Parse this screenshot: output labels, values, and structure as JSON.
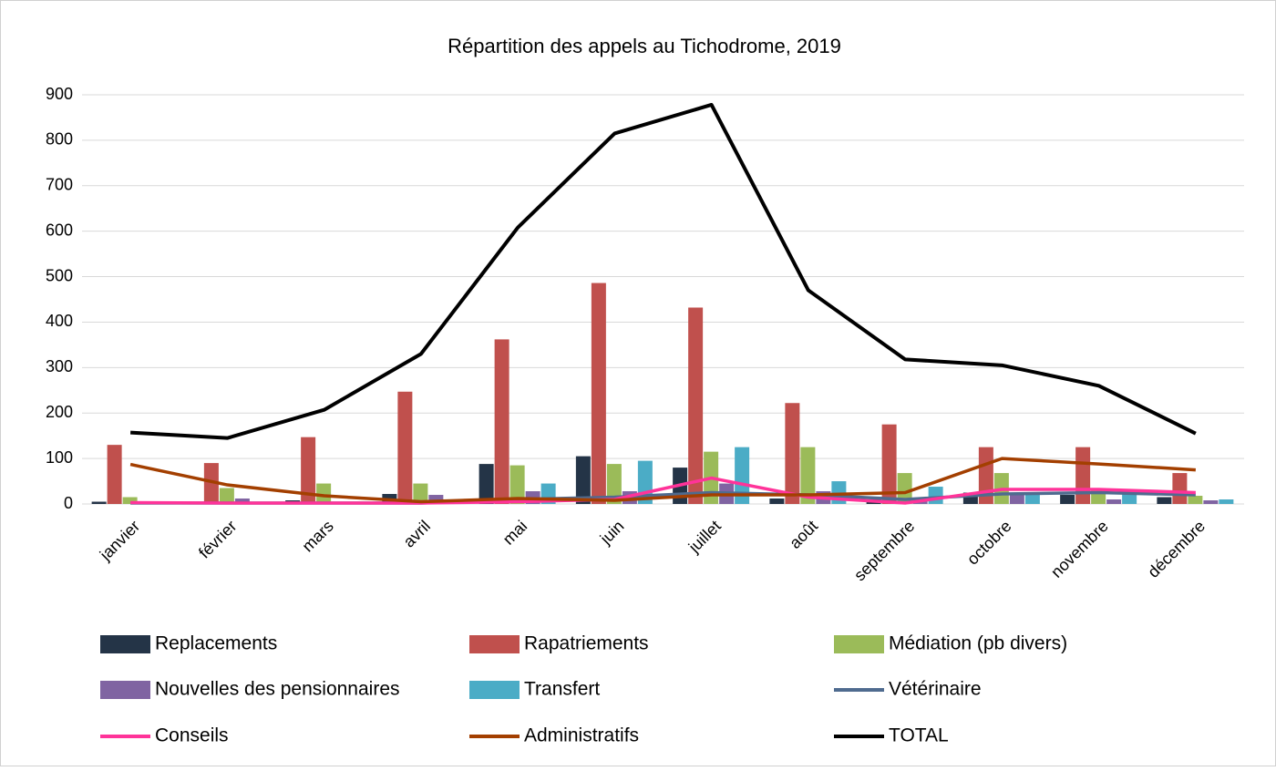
{
  "chart_data": {
    "type": "combo",
    "title": "Répartition des appels au Tichodrome, 2019",
    "categories": [
      "janvier",
      "février",
      "mars",
      "avril",
      "mai",
      "juin",
      "juillet",
      "août",
      "septembre",
      "octobre",
      "novembre",
      "décembre"
    ],
    "series": [
      {
        "name": "Replacements",
        "type": "bar",
        "color": "#243447",
        "values": [
          5,
          5,
          8,
          22,
          88,
          105,
          80,
          12,
          10,
          25,
          20,
          15
        ]
      },
      {
        "name": "Rapatriements",
        "type": "bar",
        "color": "#c0504d",
        "values": [
          130,
          90,
          147,
          247,
          362,
          486,
          432,
          222,
          175,
          125,
          125,
          68
        ]
      },
      {
        "name": "Médiation (pb divers)",
        "type": "bar",
        "color": "#9bbb59",
        "values": [
          15,
          35,
          45,
          45,
          85,
          88,
          115,
          125,
          68,
          68,
          30,
          18
        ]
      },
      {
        "name": "Nouvelles des pensionnaires",
        "type": "bar",
        "color": "#8064a2",
        "values": [
          3,
          12,
          5,
          20,
          28,
          28,
          45,
          28,
          12,
          25,
          10,
          8
        ]
      },
      {
        "name": "Transfert",
        "type": "bar",
        "color": "#4bacc6",
        "values": [
          2,
          2,
          3,
          2,
          45,
          95,
          125,
          50,
          38,
          25,
          25,
          10
        ]
      },
      {
        "name": "Vétérinaire",
        "type": "line",
        "color": "#4f6b8f",
        "values": [
          2,
          2,
          2,
          2,
          10,
          15,
          25,
          20,
          10,
          22,
          25,
          20
        ]
      },
      {
        "name": "Conseils",
        "type": "line",
        "color": "#ff3399",
        "values": [
          3,
          2,
          2,
          2,
          5,
          10,
          57,
          15,
          2,
          32,
          32,
          25
        ]
      },
      {
        "name": "Administratifs",
        "type": "line",
        "color": "#a33f00",
        "values": [
          87,
          42,
          18,
          5,
          12,
          8,
          20,
          20,
          25,
          100,
          88,
          75
        ]
      },
      {
        "name": "TOTAL",
        "type": "line",
        "color": "#000000",
        "values": [
          157,
          145,
          207,
          330,
          608,
          815,
          878,
          470,
          318,
          305,
          260,
          155
        ]
      }
    ],
    "ylim": [
      0,
      900
    ],
    "yticks": [
      0,
      100,
      200,
      300,
      400,
      500,
      600,
      700,
      800,
      900
    ],
    "grid": true,
    "legend": "bottom"
  }
}
